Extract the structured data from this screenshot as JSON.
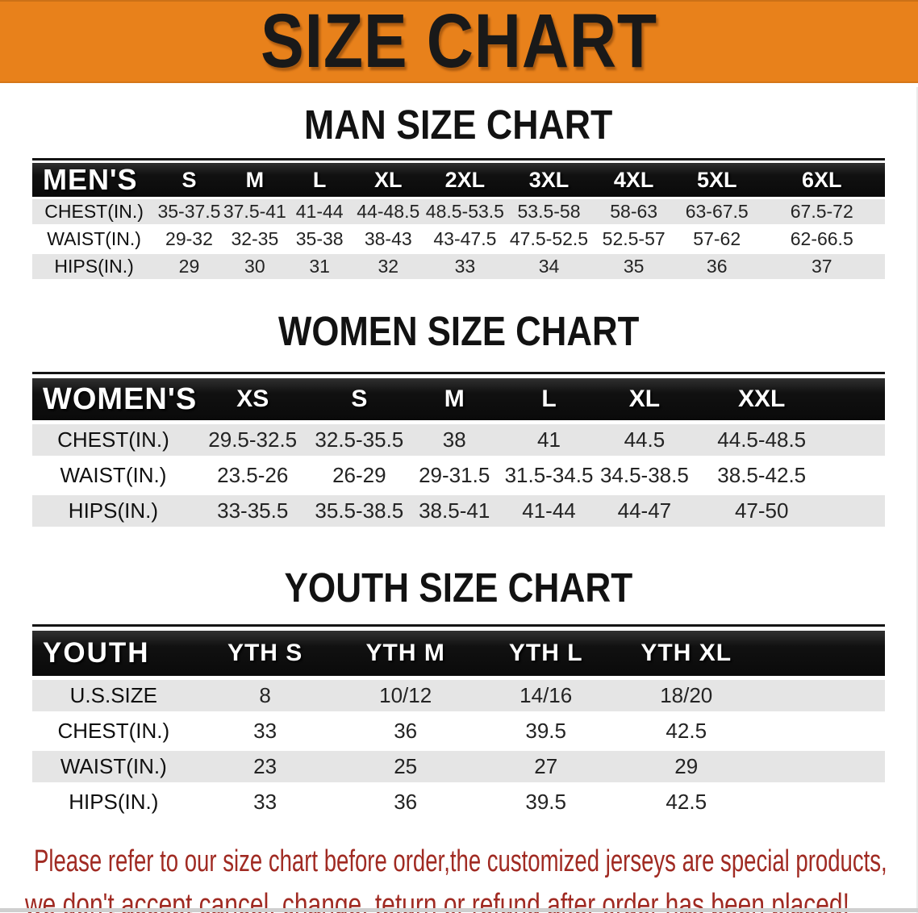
{
  "banner": {
    "title": "SIZE CHART"
  },
  "sections": [
    {
      "heading": "MAN SIZE CHART",
      "table": {
        "corner_label": "MEN'S",
        "columns": [
          "S",
          "M",
          "L",
          "XL",
          "2XL",
          "3XL",
          "4XL",
          "5XL",
          "6XL"
        ],
        "rows": [
          {
            "label": "CHEST(IN.)",
            "values": [
              "35-37.5",
              "37.5-41",
              "41-44",
              "44-48.5",
              "48.5-53.5",
              "53.5-58",
              "58-63",
              "63-67.5",
              "67.5-72"
            ]
          },
          {
            "label": "WAIST(IN.)",
            "values": [
              "29-32",
              "32-35",
              "35-38",
              "38-43",
              "43-47.5",
              "47.5-52.5",
              "52.5-57",
              "57-62",
              "62-66.5"
            ]
          },
          {
            "label": "HIPS(IN.)",
            "values": [
              "29",
              "30",
              "31",
              "32",
              "33",
              "34",
              "35",
              "36",
              "37"
            ]
          }
        ]
      }
    },
    {
      "heading": "WOMEN SIZE CHART",
      "table": {
        "corner_label": "WOMEN'S",
        "columns": [
          "XS",
          "S",
          "M",
          "L",
          "XL",
          "XXL"
        ],
        "rows": [
          {
            "label": "CHEST(IN.)",
            "values": [
              "29.5-32.5",
              "32.5-35.5",
              "38",
              "41",
              "44.5",
              "44.5-48.5"
            ]
          },
          {
            "label": "WAIST(IN.)",
            "values": [
              "23.5-26",
              "26-29",
              "29-31.5",
              "31.5-34.5",
              "34.5-38.5",
              "38.5-42.5"
            ]
          },
          {
            "label": "HIPS(IN.)",
            "values": [
              "33-35.5",
              "35.5-38.5",
              "38.5-41",
              "41-44",
              "44-47",
              "47-50"
            ]
          }
        ]
      }
    },
    {
      "heading": "YOUTH SIZE CHART",
      "table": {
        "corner_label": "YOUTH",
        "columns": [
          "YTH S",
          "YTH M",
          "YTH L",
          "YTH XL"
        ],
        "rows": [
          {
            "label": "U.S.SIZE",
            "values": [
              "8",
              "10/12",
              "14/16",
              "18/20"
            ]
          },
          {
            "label": "CHEST(IN.)",
            "values": [
              "33",
              "36",
              "39.5",
              "42.5"
            ]
          },
          {
            "label": "WAIST(IN.)",
            "values": [
              "23",
              "25",
              "27",
              "29"
            ]
          },
          {
            "label": "HIPS(IN.)",
            "values": [
              "33",
              "36",
              "39.5",
              "42.5"
            ]
          }
        ]
      }
    }
  ],
  "footer": {
    "lines": [
      "Please refer to our size chart before order,the customized jerseys are special products,",
      "we don't accept cancel, change, teturn or refund after order has been placed!"
    ]
  },
  "colors": {
    "banner_orange": "#e8811b",
    "banner_text": "#191919",
    "header_bar_black": "#141414",
    "row_gray": "#e5e5e5",
    "footer_red": "#a02a22",
    "bottom_strip_gray": "#cfcfcf"
  }
}
